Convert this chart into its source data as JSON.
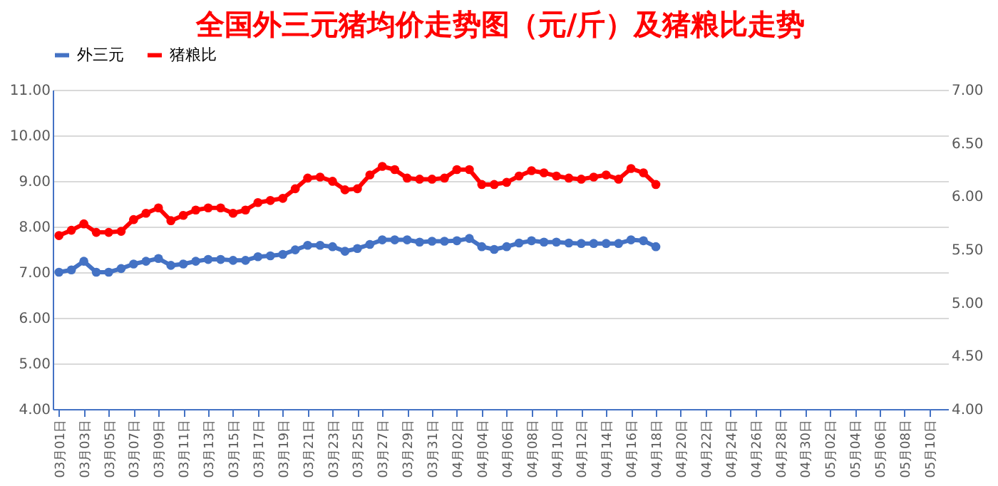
{
  "chart_data": {
    "type": "line",
    "title": "全国外三元猪均价走势图（元/斤）及猪粮比走势",
    "categories": [
      "03月01日",
      null,
      "03月03日",
      null,
      "03月05日",
      null,
      "03月07日",
      null,
      "03月09日",
      null,
      "03月11日",
      null,
      "03月13日",
      null,
      "03月15日",
      null,
      "03月17日",
      null,
      "03月19日",
      null,
      "03月21日",
      null,
      "03月23日",
      null,
      "03月25日",
      null,
      "03月27日",
      null,
      "03月29日",
      null,
      "03月31日",
      null,
      "04月02日",
      null,
      "04月04日",
      null,
      "04月06日",
      null,
      "04月08日",
      null,
      "04月10日",
      null,
      "04月12日",
      null,
      "04月14日",
      null,
      "04月16日",
      null,
      "04月18日",
      null,
      "04月20日",
      null,
      "04月22日",
      null,
      "04月24日",
      null,
      "04月26日",
      null,
      "04月28日",
      null,
      "04月30日",
      null,
      "05月02日",
      null,
      "05月04日",
      null,
      "05月06日",
      null,
      "05月08日",
      null,
      "05月10日",
      null
    ],
    "series": [
      {
        "name": "外三元",
        "color": "#4472c4",
        "values": [
          7.0,
          7.05,
          7.24,
          7.0,
          7.0,
          7.08,
          7.18,
          7.24,
          7.3,
          7.15,
          7.18,
          7.24,
          7.28,
          7.28,
          7.26,
          7.26,
          7.34,
          7.36,
          7.39,
          7.49,
          7.59,
          7.59,
          7.56,
          7.46,
          7.52,
          7.61,
          7.71,
          7.71,
          7.71,
          7.66,
          7.68,
          7.68,
          7.69,
          7.74,
          7.56,
          7.5,
          7.56,
          7.64,
          7.69,
          7.66,
          7.66,
          7.64,
          7.63,
          7.63,
          7.63,
          7.63,
          7.71,
          7.69,
          7.56,
          null,
          null,
          null,
          null,
          null,
          null,
          null,
          null,
          null,
          null,
          null,
          null,
          null,
          null,
          null,
          null,
          null,
          null,
          null,
          null,
          null,
          null,
          null
        ]
      },
      {
        "name": "猪粮比",
        "color": "#ff0000",
        "axis": "y2",
        "values": [
          5.63,
          5.68,
          5.74,
          5.66,
          5.66,
          5.67,
          5.78,
          5.84,
          5.89,
          5.77,
          5.82,
          5.87,
          5.89,
          5.89,
          5.84,
          5.87,
          5.94,
          5.96,
          5.98,
          6.07,
          6.17,
          6.18,
          6.14,
          6.06,
          6.07,
          6.2,
          6.28,
          6.25,
          6.17,
          6.16,
          6.16,
          6.17,
          6.25,
          6.25,
          6.11,
          6.11,
          6.13,
          6.19,
          6.24,
          6.22,
          6.19,
          6.17,
          6.16,
          6.18,
          6.2,
          6.16,
          6.26,
          6.22,
          6.11,
          null,
          null,
          null,
          null,
          null,
          null,
          null,
          null,
          null,
          null,
          null,
          null,
          null,
          null,
          null,
          null,
          null,
          null,
          null,
          null,
          null,
          null,
          null
        ]
      }
    ],
    "ylim": [
      4,
      11
    ],
    "yticks": [
      {
        "value": 4,
        "label": "4.00"
      },
      {
        "value": 5,
        "label": "5.00"
      },
      {
        "value": 6,
        "label": "6.00"
      },
      {
        "value": 7,
        "label": "7.00"
      },
      {
        "value": 8,
        "label": "8.00"
      },
      {
        "value": 9,
        "label": "9.00"
      },
      {
        "value": 10,
        "label": "10.00"
      },
      {
        "value": 11,
        "label": "11.00"
      }
    ],
    "y2lim": [
      4,
      7
    ],
    "y2ticks": [
      {
        "value": 4,
        "label": "4.00"
      },
      {
        "value": 4.5,
        "label": "4.50"
      },
      {
        "value": 5,
        "label": "5.00"
      },
      {
        "value": 5.5,
        "label": "5.50"
      },
      {
        "value": 6,
        "label": "6.00"
      },
      {
        "value": 6.5,
        "label": "6.50"
      },
      {
        "value": 7,
        "label": "7.00"
      }
    ],
    "grid": "y",
    "legend": "top",
    "marker": "circle",
    "line_style": "solid"
  }
}
